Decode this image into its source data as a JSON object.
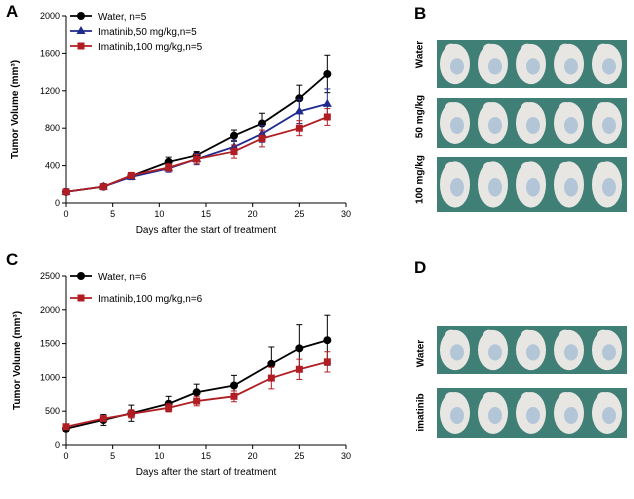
{
  "panels": {
    "a": "A",
    "b": "B",
    "c": "C",
    "d": "D"
  },
  "photos_b": {
    "rows": [
      "Water",
      "50 mg/kg",
      "100 mg/kg"
    ],
    "background_color": "#3f7f76",
    "mouse_color": "#e8e6e2",
    "tumor_color": "#a9bfd6"
  },
  "photos_d": {
    "rows": [
      "Water",
      "imatinib"
    ],
    "background_color": "#3f7f76",
    "mouse_color": "#e8e6e2",
    "tumor_color": "#a9bfd6"
  },
  "chart_data": [
    {
      "id": "chart-a",
      "type": "line",
      "xlabel": "Days after the start of treatment",
      "ylabel": "Tumor Volume (mm³)",
      "xlim": [
        0,
        30
      ],
      "ylim": [
        0,
        2000
      ],
      "xticks": [
        0,
        5,
        10,
        15,
        20,
        25,
        30
      ],
      "yticks": [
        0,
        400,
        800,
        1200,
        1600,
        2000
      ],
      "legend_position": "top-left",
      "series": [
        {
          "name": "Water, n=5",
          "color": "#000000",
          "marker": "circle",
          "x": [
            0,
            4,
            7,
            11,
            14,
            18,
            21,
            25,
            28
          ],
          "values": [
            120,
            175,
            290,
            440,
            510,
            720,
            850,
            1120,
            1380
          ],
          "errors": [
            20,
            20,
            30,
            50,
            40,
            60,
            110,
            140,
            200
          ]
        },
        {
          "name": "Imatinib,50 mg/kg,n=5",
          "color": "#1f2a8f",
          "marker": "triangle",
          "x": [
            0,
            4,
            7,
            11,
            14,
            18,
            21,
            25,
            28
          ],
          "values": [
            120,
            175,
            280,
            370,
            470,
            600,
            740,
            980,
            1060
          ],
          "errors": [
            20,
            20,
            30,
            40,
            60,
            70,
            90,
            130,
            160
          ]
        },
        {
          "name": "Imatinib,100 mg/kg,n=5",
          "color": "#b01e23",
          "marker": "square",
          "x": [
            0,
            4,
            7,
            11,
            14,
            18,
            21,
            25,
            28
          ],
          "values": [
            120,
            175,
            295,
            380,
            470,
            550,
            690,
            800,
            920
          ],
          "errors": [
            20,
            20,
            30,
            40,
            50,
            70,
            90,
            80,
            90
          ]
        }
      ]
    },
    {
      "id": "chart-c",
      "type": "line",
      "xlabel": "Days after the start of treatment",
      "ylabel": "Tumor Volume (mm³)",
      "xlim": [
        0,
        30
      ],
      "ylim": [
        0,
        2500
      ],
      "xticks": [
        0,
        5,
        10,
        15,
        20,
        25,
        30
      ],
      "yticks": [
        0,
        500,
        1000,
        1500,
        2000,
        2500
      ],
      "legend_position": "top-left",
      "series": [
        {
          "name": "Water, n=6",
          "color": "#000000",
          "marker": "circle",
          "x": [
            0,
            4,
            7,
            11,
            14,
            18,
            22,
            25,
            28
          ],
          "values": [
            240,
            370,
            470,
            610,
            780,
            880,
            1200,
            1430,
            1550
          ],
          "errors": [
            40,
            80,
            120,
            110,
            120,
            150,
            250,
            350,
            370
          ]
        },
        {
          "name": "Imatinib,100 mg/kg,n=6",
          "color": "#b01e23",
          "marker": "square",
          "x": [
            0,
            4,
            7,
            11,
            14,
            18,
            22,
            25,
            28
          ],
          "values": [
            270,
            390,
            460,
            550,
            650,
            720,
            990,
            1120,
            1230
          ],
          "errors": [
            30,
            40,
            60,
            60,
            70,
            80,
            160,
            150,
            150
          ]
        }
      ]
    }
  ]
}
